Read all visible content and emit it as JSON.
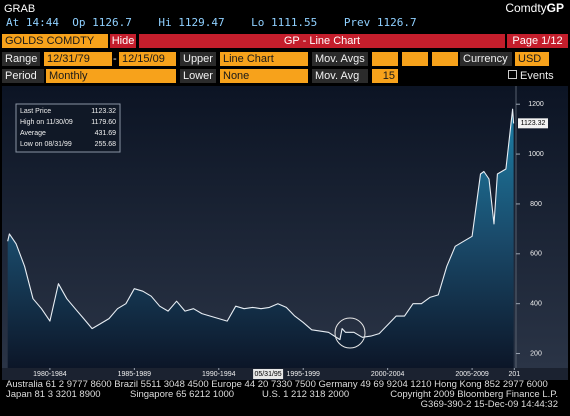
{
  "header": {
    "title": "GRAB",
    "brand": "Comdty",
    "brand_suffix": "GP",
    "quote": [
      "At 14:44",
      "Op 1126.7",
      "Hi 1129.47",
      "Lo 1111.55",
      "Prev 1126.7"
    ]
  },
  "toolbar": {
    "security": "GOLDS COMDTY",
    "hide": "Hide",
    "title": "GP - Line Chart",
    "page": "Page 1/12"
  },
  "settings": {
    "range_label": "Range",
    "range_start": "12/31/79",
    "range_sep": "-",
    "range_end": "12/15/09",
    "upper_label": "Upper",
    "upper": "Line Chart",
    "mov_avgs_label": "Mov. Avgs",
    "currency_label": "Currency",
    "currency": "USD",
    "period_label": "Period",
    "period": "Monthly",
    "lower_label": "Lower",
    "lower": "None",
    "mov_avg_label": "Mov. Avg",
    "mov_avg": "15",
    "events": "Events"
  },
  "chart_data": {
    "type": "line",
    "color": "#e8eef4",
    "x": [
      1980.0,
      1980.1,
      1980.5,
      1981.0,
      1981.5,
      1982.0,
      1982.5,
      1983.0,
      1983.5,
      1984.0,
      1984.5,
      1985.0,
      1985.5,
      1986.0,
      1986.5,
      1987.0,
      1987.5,
      1988.0,
      1988.5,
      1989.0,
      1989.5,
      1990.0,
      1990.5,
      1991.0,
      1991.5,
      1992.0,
      1992.5,
      1993.0,
      1993.5,
      1994.0,
      1994.5,
      1995.0,
      1995.5,
      1996.0,
      1996.5,
      1997.0,
      1997.5,
      1998.0,
      1998.5,
      1999.0,
      1999.67,
      1999.8,
      2000.0,
      2000.5,
      2001.0,
      2001.5,
      2002.0,
      2002.5,
      2003.0,
      2003.5,
      2004.0,
      2004.5,
      2005.0,
      2005.5,
      2006.0,
      2006.5,
      2007.0,
      2007.5,
      2008.0,
      2008.2,
      2008.5,
      2008.8,
      2009.0,
      2009.5,
      2009.9,
      2009.96
    ],
    "values": [
      650,
      680,
      640,
      550,
      420,
      380,
      330,
      480,
      420,
      380,
      340,
      300,
      320,
      340,
      380,
      400,
      460,
      450,
      430,
      390,
      370,
      410,
      370,
      380,
      360,
      350,
      340,
      330,
      390,
      380,
      385,
      380,
      385,
      400,
      385,
      350,
      325,
      295,
      290,
      285,
      256,
      300,
      285,
      285,
      265,
      270,
      280,
      315,
      350,
      350,
      400,
      400,
      425,
      435,
      550,
      630,
      650,
      670,
      920,
      930,
      900,
      720,
      920,
      940,
      1180,
      1123
    ],
    "xlim": [
      1979.9,
      2010.1
    ],
    "ylim": [
      150,
      1265
    ],
    "xticks": [
      {
        "value": 1982.5,
        "label": "1980-1984"
      },
      {
        "value": 1987.5,
        "label": "1985-1989"
      },
      {
        "value": 1992.5,
        "label": "1990-1994"
      },
      {
        "value": 1997.5,
        "label": "1995-1999"
      },
      {
        "value": 2002.5,
        "label": "2000-2004"
      },
      {
        "value": 2007.5,
        "label": "2005-2009"
      },
      {
        "value": 2010,
        "label": "201"
      }
    ],
    "yticks": [
      200,
      400,
      600,
      800,
      1000,
      1200
    ],
    "cursor": {
      "value": 1995.42,
      "label": "05/31/95"
    },
    "last_label": 1123.32,
    "stats": [
      {
        "label": "Last Price",
        "value": 1123.32
      },
      {
        "label": "High on 11/30/09",
        "value": {
          "value": 1179.6,
          "label": "1179.60"
        }
      },
      {
        "label": "Average",
        "value": 431.69
      },
      {
        "label": "Low on 08/31/99",
        "value": 255.68
      }
    ]
  },
  "footer": [
    "Australia 61 2 9777 8600 Brazil 5511 3048 4500 Europe 44 20 7330 7500 Germany 49 69 9204 1210 Hong Kong 852 2977 6000",
    "Japan 81 3 3201 8900",
    "Singapore 65 6212 1000",
    "U.S. 1 212 318 2000",
    "Copyright 2009 Bloomberg Finance L.P.",
    "G369-390-2 15-Dec-09 14:44:32"
  ]
}
